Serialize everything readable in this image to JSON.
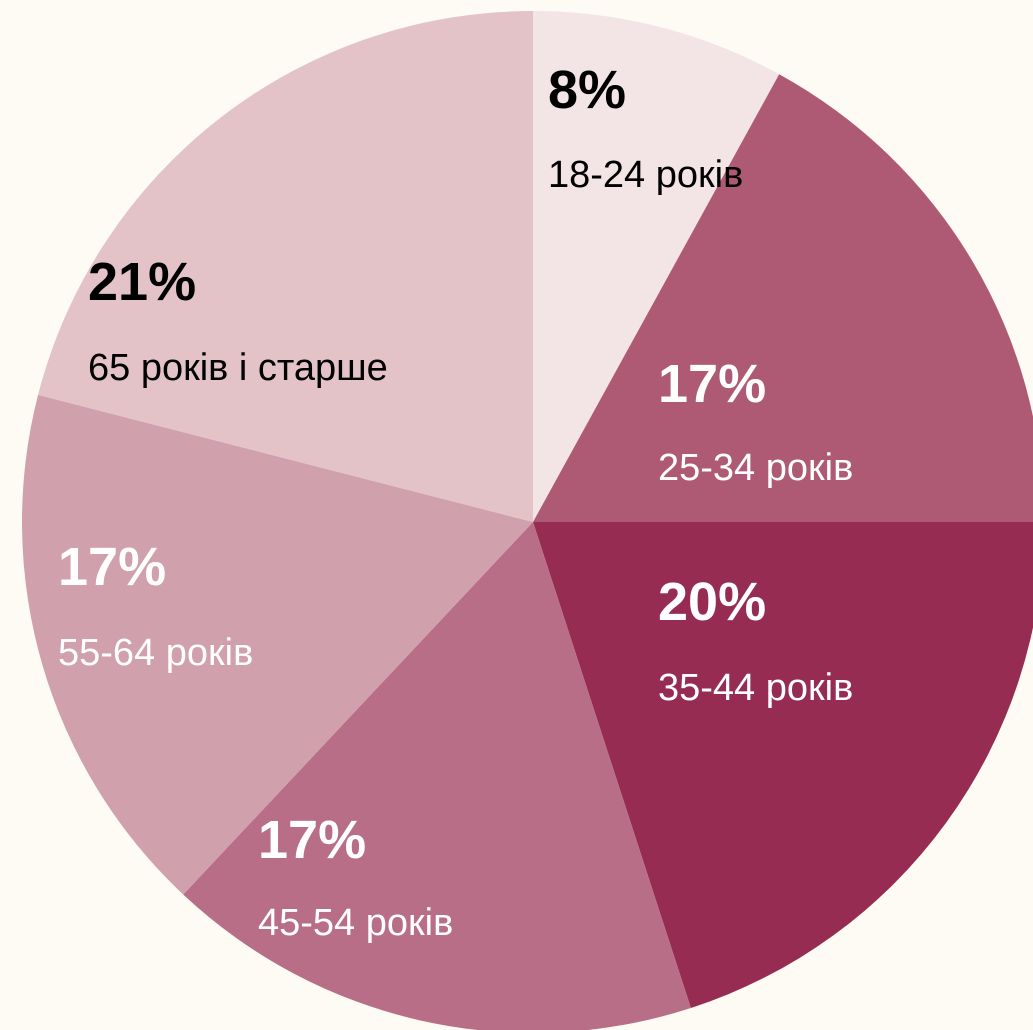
{
  "chart_data": {
    "type": "pie",
    "categories": [
      "18-24 років",
      "25-34 років",
      "35-44 років",
      "45-54 років",
      "55-64 років",
      "65 років і старше"
    ],
    "values": [
      8,
      17,
      20,
      17,
      17,
      21
    ],
    "value_labels": [
      "8%",
      "17%",
      "20%",
      "17%",
      "17%",
      "21%"
    ],
    "colors": [
      "#f3e4e6",
      "#ae5a75",
      "#962c52",
      "#b96e87",
      "#d0a0ac",
      "#e3c2c8"
    ]
  }
}
